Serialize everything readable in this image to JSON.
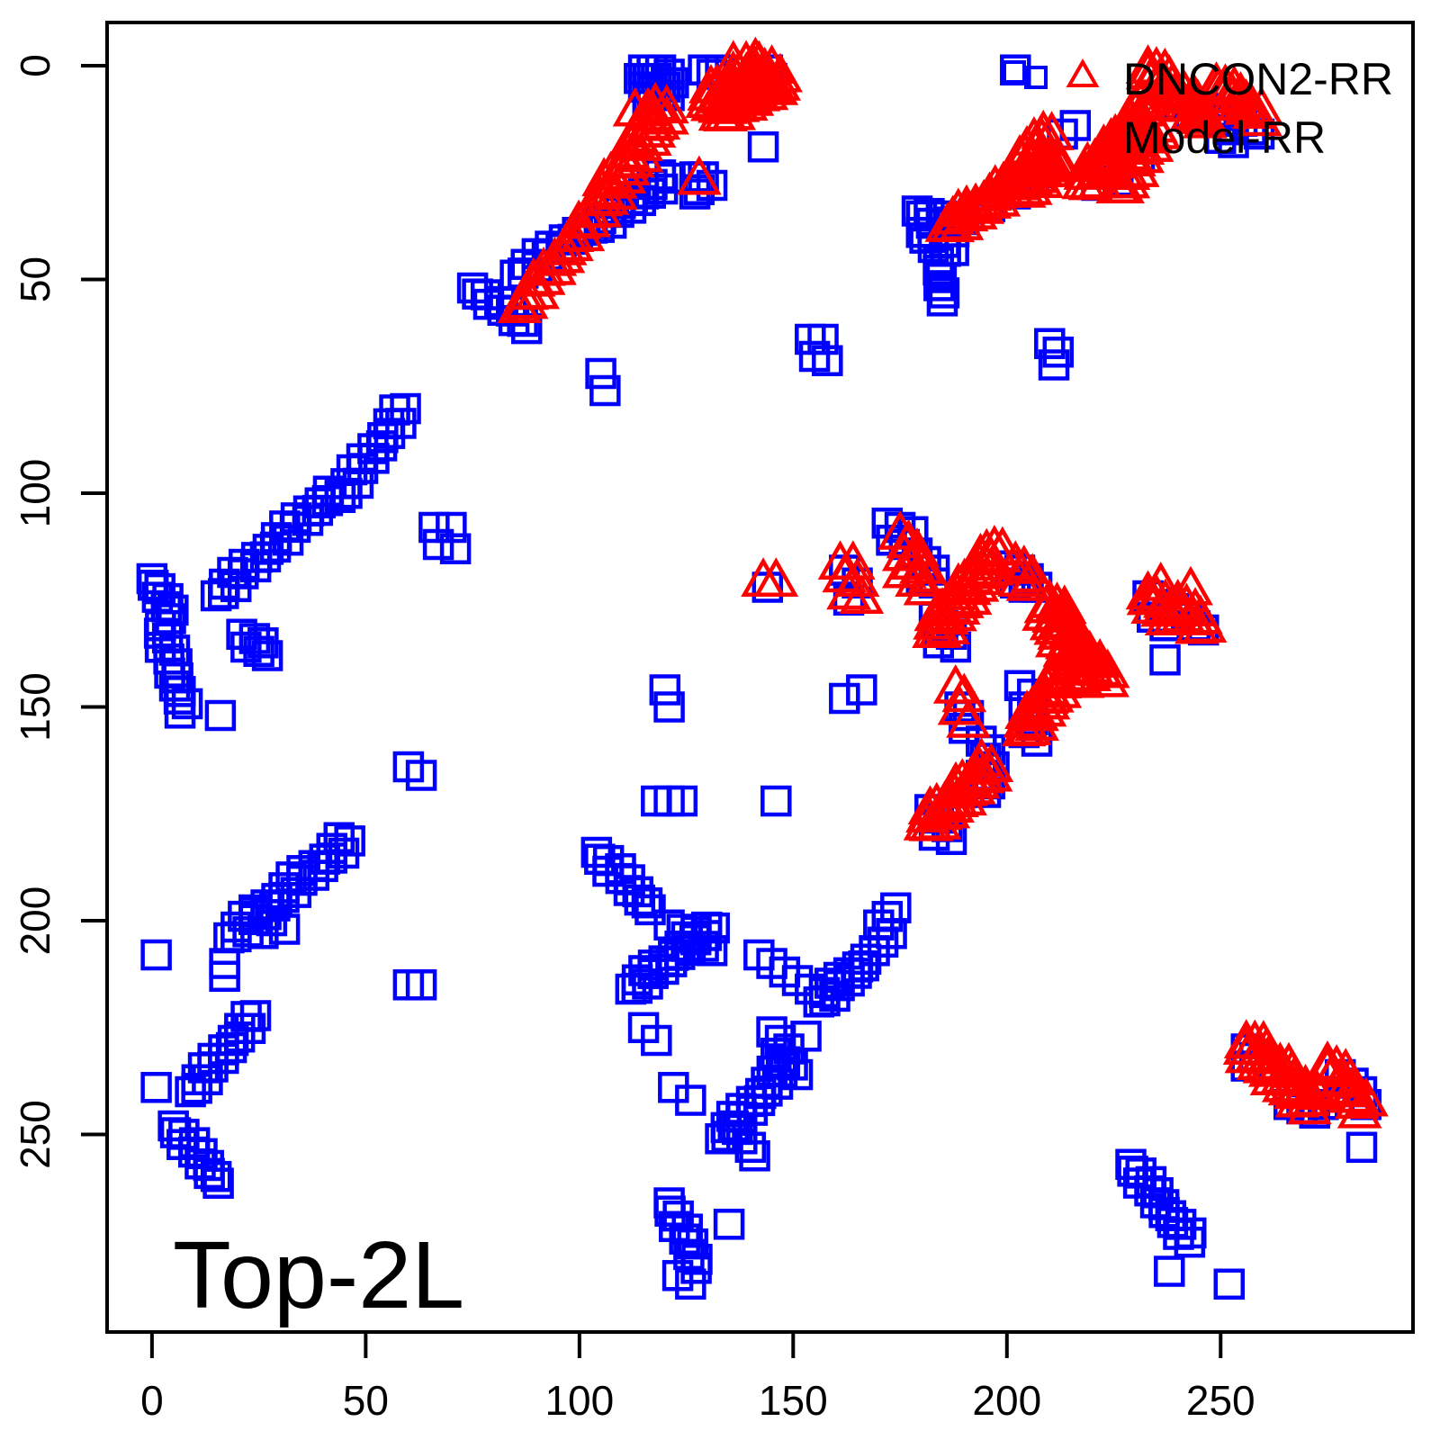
{
  "figure": {
    "background": "#FFFFFF"
  },
  "annotation": {
    "label": "Top-2L"
  },
  "legend": {
    "icons": [
      {
        "shape": "square",
        "color": "#0000FF"
      },
      {
        "shape": "square",
        "color": "#0000FF"
      },
      {
        "shape": "triangle",
        "color": "#FF0000"
      }
    ],
    "entries": [
      {
        "label": "DNCON2-RR"
      },
      {
        "label": "Model-RR"
      }
    ]
  },
  "chart_data": {
    "type": "scatter",
    "title": "",
    "xlabel": "",
    "ylabel": "",
    "x_ticks": [
      0,
      50,
      100,
      150,
      200,
      250
    ],
    "y_ticks": [
      0,
      50,
      100,
      150,
      200,
      250
    ],
    "xlim": [
      -10.5,
      295.0
    ],
    "ylim": [
      -10.1,
      296.2
    ],
    "y_inverted": true,
    "grid": false,
    "legend_position": "topright",
    "band_format": "[x1,y1,x2,y2,n,width] - n points evenly spaced from (x1,y1) to (x2,y2) with perpendicular spread width",
    "series": [
      {
        "name": "Model-RR",
        "marker": "square",
        "color": "#0000FF",
        "bands": [
          [
            18,
            204,
            46,
            181,
            26,
            3.5
          ],
          [
            112,
            216,
            131,
            201,
            20,
            3
          ],
          [
            133,
            251,
            149,
            233,
            18,
            3
          ],
          [
            156,
            219,
            166,
            210,
            12,
            3
          ],
          [
            15,
            124,
            43,
            99,
            24,
            3
          ],
          [
            44,
            101,
            59,
            80,
            16,
            3
          ],
          [
            85,
            49,
            101,
            38,
            12,
            2.5
          ],
          [
            103,
            38,
            121,
            26,
            16,
            3
          ],
          [
            229,
            257,
            243,
            275,
            16,
            2.5
          ],
          [
            75,
            52,
            88,
            61,
            10,
            2
          ],
          [
            2,
            131,
            8,
            151,
            14,
            3
          ],
          [
            179,
            34,
            188,
            38,
            8,
            2.5
          ],
          [
            180,
            39,
            187,
            44,
            7,
            2.5
          ],
          [
            184,
            46,
            185,
            55,
            6,
            1
          ],
          [
            9,
            240,
            24,
            222,
            16,
            2.5
          ],
          [
            5,
            248,
            16,
            261,
            12,
            2.5
          ],
          [
            104,
            184,
            117,
            197,
            12,
            2.5
          ],
          [
            121,
            266,
            128,
            281,
            10,
            2.5
          ],
          [
            0,
            120,
            5,
            129,
            8,
            2
          ]
        ],
        "points": [
          [
            115,
            1
          ],
          [
            117,
            1
          ],
          [
            119,
            1
          ],
          [
            121,
            2
          ],
          [
            116,
            3
          ],
          [
            118,
            3
          ],
          [
            120,
            5
          ],
          [
            115,
            5
          ],
          [
            117,
            6
          ],
          [
            119,
            7
          ],
          [
            121,
            7
          ],
          [
            122,
            4
          ],
          [
            114,
            3
          ],
          [
            116,
            8
          ],
          [
            129,
            1
          ],
          [
            131,
            2
          ],
          [
            133,
            1
          ],
          [
            144,
            1
          ],
          [
            145,
            3
          ],
          [
            127,
            26
          ],
          [
            129,
            26
          ],
          [
            128,
            29
          ],
          [
            131,
            28
          ],
          [
            127,
            30
          ],
          [
            143,
            19
          ],
          [
            105,
            72
          ],
          [
            106,
            76
          ],
          [
            154,
            64
          ],
          [
            157,
            64
          ],
          [
            155,
            68
          ],
          [
            158,
            69
          ],
          [
            190,
            36
          ],
          [
            196,
            33
          ],
          [
            202,
            30
          ],
          [
            208,
            25
          ],
          [
            213,
            16
          ],
          [
            216,
            14
          ],
          [
            221,
            28
          ],
          [
            226,
            27
          ],
          [
            231,
            21
          ],
          [
            240,
            9
          ],
          [
            243,
            11
          ],
          [
            246,
            10
          ],
          [
            248,
            12
          ],
          [
            250,
            13
          ],
          [
            252,
            15
          ],
          [
            250,
            17
          ],
          [
            253,
            18
          ],
          [
            255,
            13
          ],
          [
            257,
            15
          ],
          [
            259,
            16
          ],
          [
            16,
            152
          ],
          [
            60,
            164
          ],
          [
            63,
            166
          ],
          [
            66,
            108
          ],
          [
            70,
            108
          ],
          [
            67,
            112
          ],
          [
            71,
            113
          ],
          [
            120,
            146
          ],
          [
            121,
            150
          ],
          [
            118,
            172
          ],
          [
            121,
            172
          ],
          [
            124,
            172
          ],
          [
            146,
            172
          ],
          [
            162,
            148
          ],
          [
            166,
            146
          ],
          [
            237,
            139
          ],
          [
            283,
            253
          ],
          [
            144,
            122
          ],
          [
            162,
            118
          ],
          [
            165,
            121
          ],
          [
            163,
            125
          ],
          [
            172,
            107
          ],
          [
            175,
            108
          ],
          [
            178,
            109
          ],
          [
            173,
            111
          ],
          [
            176,
            112
          ],
          [
            179,
            114
          ],
          [
            181,
            116
          ],
          [
            183,
            118
          ],
          [
            180,
            120
          ],
          [
            183,
            121
          ],
          [
            183,
            129
          ],
          [
            185,
            131
          ],
          [
            187,
            133
          ],
          [
            184,
            135
          ],
          [
            188,
            136
          ],
          [
            201,
            117
          ],
          [
            203,
            118
          ],
          [
            205,
            120
          ],
          [
            202,
            121
          ],
          [
            204,
            122
          ],
          [
            207,
            122
          ],
          [
            233,
            124
          ],
          [
            236,
            126
          ],
          [
            239,
            127
          ],
          [
            242,
            129
          ],
          [
            244,
            131
          ],
          [
            246,
            132
          ],
          [
            234,
            129
          ],
          [
            237,
            131
          ],
          [
            203,
            145
          ],
          [
            206,
            147
          ],
          [
            204,
            150
          ],
          [
            206,
            153
          ],
          [
            204,
            156
          ],
          [
            207,
            158
          ],
          [
            189,
            150
          ],
          [
            191,
            152
          ],
          [
            190,
            155
          ],
          [
            194,
            158
          ],
          [
            196,
            160
          ],
          [
            195,
            162
          ],
          [
            197,
            164
          ],
          [
            194,
            166
          ],
          [
            196,
            168
          ],
          [
            195,
            170
          ],
          [
            182,
            174
          ],
          [
            184,
            176
          ],
          [
            186,
            178
          ],
          [
            183,
            180
          ],
          [
            187,
            181
          ],
          [
            21,
            133
          ],
          [
            24,
            134
          ],
          [
            26,
            135
          ],
          [
            22,
            136
          ],
          [
            25,
            137
          ],
          [
            27,
            138
          ],
          [
            1,
            208
          ],
          [
            17,
            210
          ],
          [
            17,
            213
          ],
          [
            1,
            239
          ],
          [
            60,
            215
          ],
          [
            63,
            215
          ],
          [
            115,
            225
          ],
          [
            118,
            228
          ],
          [
            142,
            208
          ],
          [
            145,
            210
          ],
          [
            148,
            212
          ],
          [
            151,
            214
          ],
          [
            154,
            216
          ],
          [
            167,
            209
          ],
          [
            169,
            207
          ],
          [
            171,
            205
          ],
          [
            170,
            201
          ],
          [
            172,
            199
          ],
          [
            174,
            197
          ],
          [
            173,
            203
          ],
          [
            145,
            226
          ],
          [
            147,
            228
          ],
          [
            149,
            230
          ],
          [
            146,
            231
          ],
          [
            148,
            233
          ],
          [
            151,
            236
          ],
          [
            153,
            227
          ],
          [
            136,
            248
          ],
          [
            138,
            251
          ],
          [
            140,
            253
          ],
          [
            141,
            255
          ],
          [
            122,
            239
          ],
          [
            126,
            242
          ],
          [
            135,
            271
          ],
          [
            123,
            283
          ],
          [
            126,
            285
          ],
          [
            256,
            230
          ],
          [
            258,
            232
          ],
          [
            256,
            234
          ],
          [
            266,
            243
          ],
          [
            269,
            244
          ],
          [
            272,
            245
          ],
          [
            274,
            243
          ],
          [
            278,
            236
          ],
          [
            281,
            238
          ],
          [
            283,
            240
          ],
          [
            284,
            243
          ],
          [
            238,
            282
          ],
          [
            252,
            285
          ],
          [
            210,
            65
          ],
          [
            212,
            67
          ],
          [
            211,
            70
          ],
          [
            202,
            1
          ],
          [
            121,
            201
          ],
          [
            124,
            202
          ],
          [
            127,
            204
          ],
          [
            129,
            206
          ],
          [
            125,
            206
          ],
          [
            131,
            207
          ],
          [
            24,
            198
          ],
          [
            28,
            200
          ],
          [
            31,
            202
          ],
          [
            26,
            203
          ]
        ]
      },
      {
        "name": "DNCON2-RR",
        "marker": "triangle",
        "color": "#FF0000",
        "bands": [
          [
            86,
            57,
            104,
            34,
            18,
            2.5
          ],
          [
            105,
            32,
            120,
            10,
            26,
            4
          ],
          [
            130,
            9,
            143,
            1,
            26,
            5
          ],
          [
            133,
            12,
            146,
            4,
            18,
            3
          ],
          [
            186,
            38,
            211,
            22,
            30,
            3
          ],
          [
            204,
            30,
            212,
            23,
            8,
            2
          ],
          [
            203,
            22,
            210,
            16,
            8,
            2
          ],
          [
            218,
            28,
            233,
            13,
            24,
            5
          ],
          [
            221,
            24,
            233,
            9,
            18,
            3
          ],
          [
            233,
            1,
            247,
            13,
            22,
            4
          ],
          [
            249,
            5,
            260,
            12,
            14,
            3
          ],
          [
            227,
            29,
            235,
            16,
            10,
            2
          ],
          [
            183,
            133,
            198,
            113,
            30,
            4
          ],
          [
            210,
            126,
            219,
            144,
            30,
            5
          ],
          [
            217,
            136,
            224,
            144,
            8,
            2
          ],
          [
            204,
            156,
            213,
            143,
            18,
            3.5
          ],
          [
            181,
            178,
            196,
            164,
            26,
            4
          ],
          [
            233,
            124,
            239,
            130,
            9,
            3
          ],
          [
            240,
            126,
            246,
            132,
            9,
            3
          ],
          [
            256,
            229,
            272,
            243,
            28,
            5
          ],
          [
            275,
            234,
            284,
            244,
            14,
            4
          ]
        ],
        "points": [
          [
            113,
            11
          ],
          [
            116,
            11
          ],
          [
            128,
            27
          ],
          [
            143,
            121
          ],
          [
            146,
            121
          ],
          [
            161,
            117
          ],
          [
            164,
            117
          ],
          [
            162,
            120
          ],
          [
            165,
            121
          ],
          [
            163,
            124
          ],
          [
            166,
            125
          ],
          [
            175,
            110
          ],
          [
            177,
            112
          ],
          [
            179,
            114
          ],
          [
            176,
            115
          ],
          [
            178,
            117
          ],
          [
            180,
            118
          ],
          [
            182,
            120
          ],
          [
            179,
            121
          ],
          [
            181,
            123
          ],
          [
            176,
            119
          ],
          [
            202,
            117
          ],
          [
            204,
            118
          ],
          [
            206,
            120
          ],
          [
            203,
            121
          ],
          [
            205,
            122
          ],
          [
            188,
            146
          ],
          [
            190,
            148
          ],
          [
            189,
            151
          ],
          [
            191,
            154
          ],
          [
            136,
            0
          ],
          [
            139,
            0
          ],
          [
            142,
            0
          ],
          [
            145,
            1
          ],
          [
            147,
            3
          ],
          [
            146,
            6
          ],
          [
            236,
            122
          ],
          [
            243,
            123
          ],
          [
            226,
            29
          ]
        ]
      }
    ]
  }
}
